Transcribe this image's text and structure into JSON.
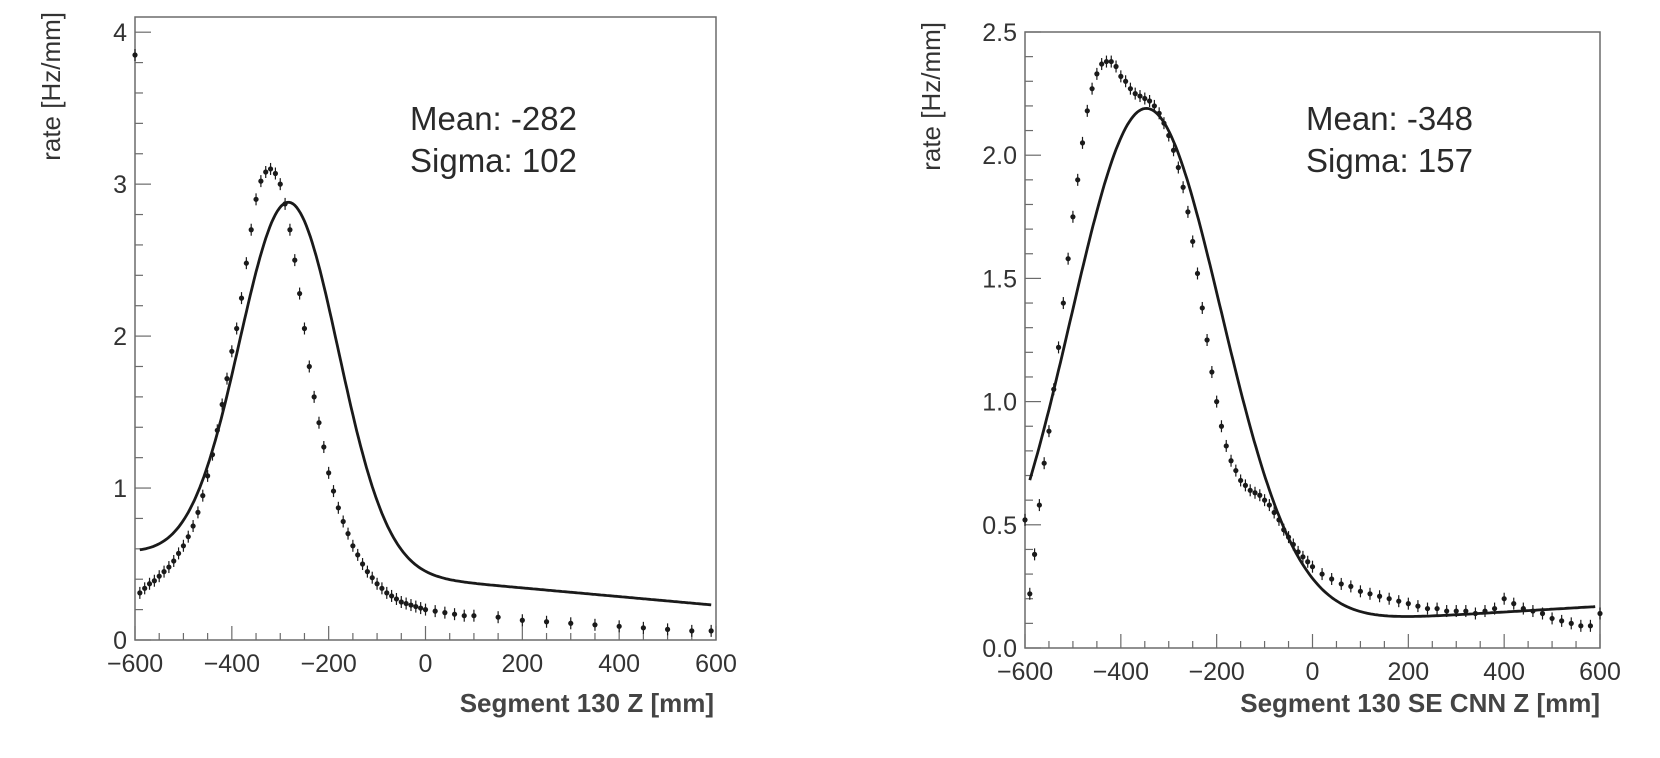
{
  "chart_data": [
    {
      "type": "scatter",
      "xlabel": "Segment 130 Z [mm]",
      "ylabel": "rate [Hz/mm]",
      "xlim": [
        -600,
        600
      ],
      "ylim": [
        0,
        4.1
      ],
      "xticks": [
        -600,
        -400,
        -200,
        0,
        200,
        400,
        600
      ],
      "xtick_labels": [
        "−600",
        "−400",
        "−200",
        "0",
        "200",
        "400",
        "600"
      ],
      "yticks": [
        0,
        1,
        2,
        3,
        4
      ],
      "ytick_labels": [
        "0",
        "1",
        "2",
        "3",
        "4"
      ],
      "annotations": [
        "Mean: -282",
        "Sigma: 102"
      ],
      "grid": false,
      "fit": {
        "type": "gaussian+linear",
        "mean": -282,
        "sigma": 102,
        "amplitude": 2.4,
        "baseline_a": 0.4,
        "baseline_b": -0.000286,
        "range": [
          -590,
          590
        ]
      },
      "series": [
        {
          "x": [
            -600,
            -590,
            -580,
            -570,
            -560,
            -550,
            -540,
            -530,
            -520,
            -510,
            -500,
            -490,
            -480,
            -470,
            -460,
            -450,
            -440,
            -430,
            -420,
            -410,
            -400,
            -390,
            -380,
            -370,
            -360,
            -350,
            -340,
            -330,
            -320,
            -310,
            -300,
            -290,
            -280,
            -270,
            -260,
            -250,
            -240,
            -230,
            -220,
            -210,
            -200,
            -190,
            -180,
            -170,
            -160,
            -150,
            -140,
            -130,
            -120,
            -110,
            -100,
            -90,
            -80,
            -70,
            -60,
            -50,
            -40,
            -30,
            -20,
            -10,
            0,
            20,
            40,
            60,
            80,
            100,
            150,
            200,
            250,
            300,
            350,
            400,
            450,
            500,
            550,
            590
          ],
          "values": [
            3.85,
            0.31,
            0.34,
            0.37,
            0.39,
            0.42,
            0.45,
            0.48,
            0.52,
            0.57,
            0.62,
            0.68,
            0.75,
            0.84,
            0.95,
            1.08,
            1.22,
            1.38,
            1.55,
            1.72,
            1.9,
            2.05,
            2.25,
            2.48,
            2.7,
            2.9,
            3.02,
            3.08,
            3.1,
            3.07,
            3.0,
            2.87,
            2.7,
            2.5,
            2.28,
            2.05,
            1.8,
            1.6,
            1.43,
            1.27,
            1.1,
            0.98,
            0.87,
            0.78,
            0.7,
            0.62,
            0.56,
            0.5,
            0.45,
            0.41,
            0.37,
            0.34,
            0.31,
            0.29,
            0.27,
            0.25,
            0.24,
            0.23,
            0.22,
            0.21,
            0.2,
            0.19,
            0.18,
            0.17,
            0.16,
            0.16,
            0.15,
            0.13,
            0.12,
            0.11,
            0.1,
            0.09,
            0.08,
            0.07,
            0.06,
            0.06
          ]
        }
      ]
    },
    {
      "type": "scatter",
      "xlabel": "Segment 130 SE CNN Z [mm]",
      "ylabel": "rate [Hz/mm]",
      "xlim": [
        -600,
        600
      ],
      "ylim": [
        0,
        2.5
      ],
      "xticks": [
        -600,
        -400,
        -200,
        0,
        200,
        400,
        600
      ],
      "xtick_labels": [
        "−600",
        "−400",
        "−200",
        "0",
        "200",
        "400",
        "600"
      ],
      "yticks": [
        0,
        0.5,
        1,
        1.5,
        2,
        2.5
      ],
      "ytick_labels": [
        "0.0",
        "0.5",
        "1.0",
        "1.5",
        "2.0",
        "2.5"
      ],
      "annotations": [
        "Mean: -348",
        "Sigma: 157"
      ],
      "grid": false,
      "fit": {
        "type": "gaussian+linear",
        "mean": -348,
        "sigma": 157,
        "amplitude": 2.13,
        "baseline_a": 0.1,
        "baseline_b": 0.000115,
        "range": [
          -590,
          590
        ]
      },
      "series": [
        {
          "x": [
            -600,
            -590,
            -580,
            -570,
            -560,
            -550,
            -540,
            -530,
            -520,
            -510,
            -500,
            -490,
            -480,
            -470,
            -460,
            -450,
            -440,
            -430,
            -420,
            -410,
            -400,
            -390,
            -380,
            -370,
            -360,
            -350,
            -340,
            -330,
            -320,
            -310,
            -300,
            -290,
            -280,
            -270,
            -260,
            -250,
            -240,
            -230,
            -220,
            -210,
            -200,
            -190,
            -180,
            -170,
            -160,
            -150,
            -140,
            -130,
            -120,
            -110,
            -100,
            -90,
            -80,
            -70,
            -60,
            -50,
            -40,
            -30,
            -20,
            -10,
            0,
            20,
            40,
            60,
            80,
            100,
            120,
            140,
            160,
            180,
            200,
            220,
            240,
            260,
            280,
            300,
            320,
            340,
            360,
            380,
            400,
            420,
            440,
            460,
            480,
            500,
            520,
            540,
            560,
            580,
            600
          ],
          "values": [
            0.52,
            0.22,
            0.38,
            0.58,
            0.75,
            0.88,
            1.05,
            1.22,
            1.4,
            1.58,
            1.75,
            1.9,
            2.05,
            2.18,
            2.27,
            2.33,
            2.37,
            2.38,
            2.38,
            2.36,
            2.32,
            2.3,
            2.27,
            2.25,
            2.24,
            2.23,
            2.22,
            2.2,
            2.17,
            2.13,
            2.08,
            2.02,
            1.95,
            1.87,
            1.77,
            1.65,
            1.52,
            1.38,
            1.25,
            1.12,
            1.0,
            0.9,
            0.82,
            0.76,
            0.72,
            0.68,
            0.66,
            0.64,
            0.63,
            0.62,
            0.6,
            0.58,
            0.55,
            0.52,
            0.48,
            0.45,
            0.42,
            0.39,
            0.37,
            0.35,
            0.33,
            0.3,
            0.28,
            0.26,
            0.25,
            0.23,
            0.22,
            0.21,
            0.2,
            0.19,
            0.18,
            0.17,
            0.16,
            0.16,
            0.15,
            0.15,
            0.15,
            0.14,
            0.15,
            0.16,
            0.2,
            0.18,
            0.16,
            0.15,
            0.14,
            0.12,
            0.11,
            0.1,
            0.09,
            0.09,
            0.14
          ]
        }
      ]
    }
  ]
}
